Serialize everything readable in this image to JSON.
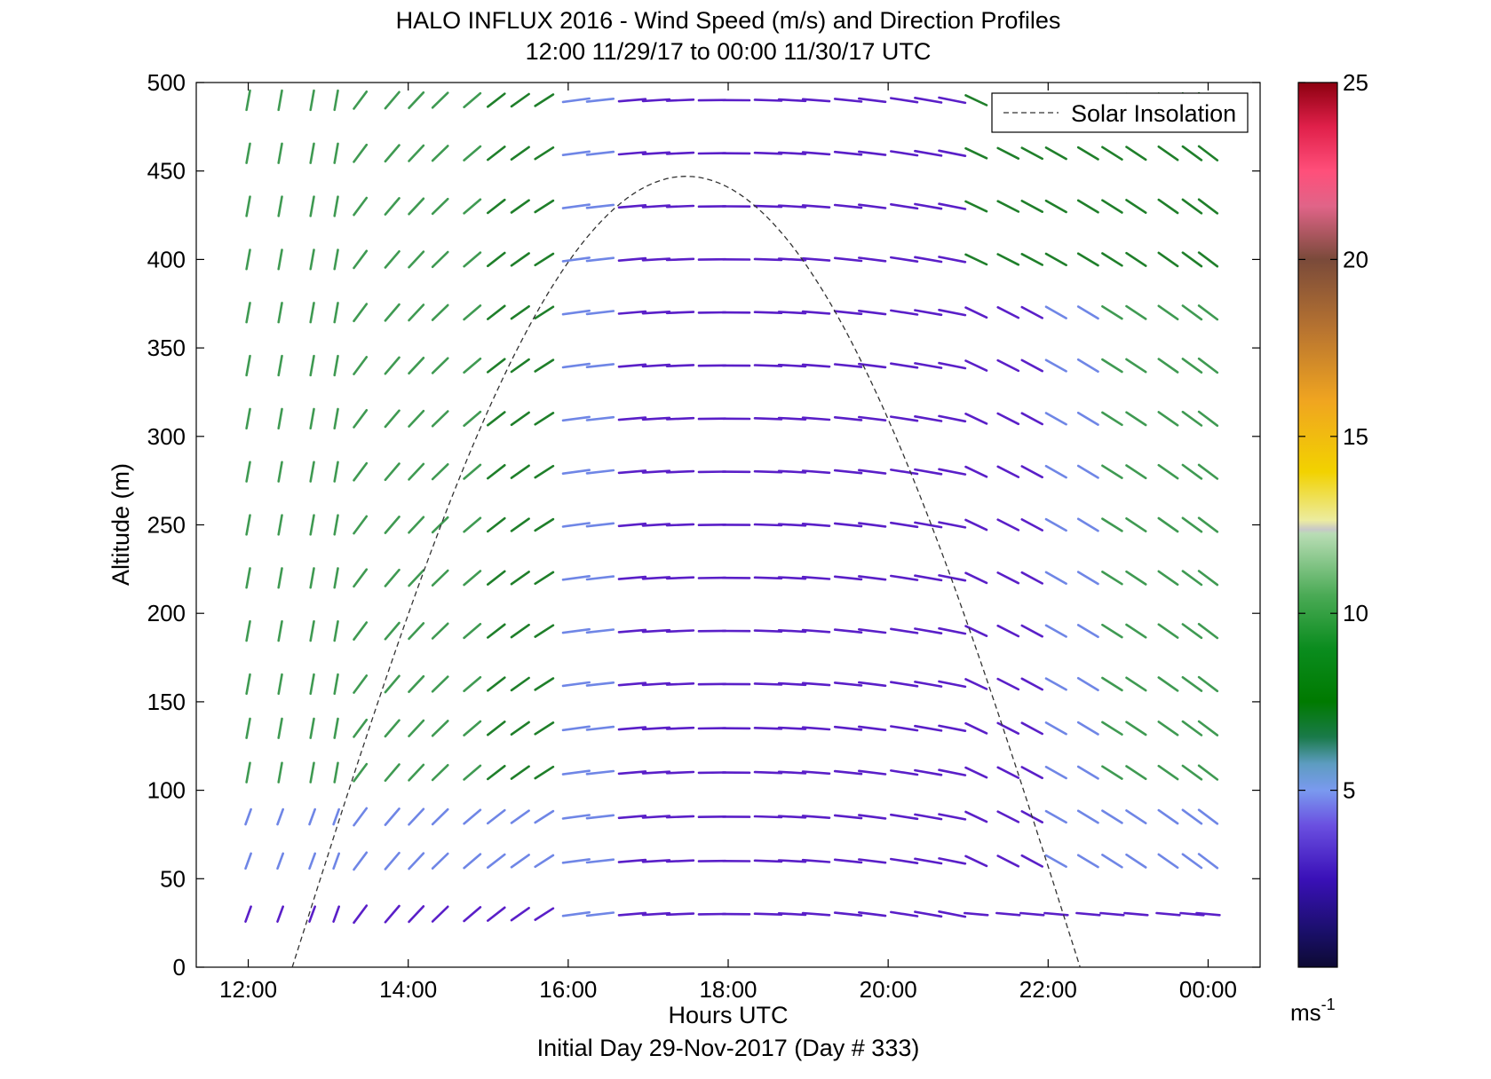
{
  "chart_data": {
    "type": "vector_field",
    "title": "HALO INFLUX 2016 - Wind Speed (m/s) and Direction Profiles",
    "subtitle": "12:00 11/29/17 to 00:00 11/30/17  UTC",
    "xlabel": "Hours UTC",
    "ylabel": "Altitude (m)",
    "footer": "Initial Day 29-Nov-2017 (Day # 333)",
    "x_ticks": [
      {
        "value": 12,
        "label": "12:00"
      },
      {
        "value": 14,
        "label": "14:00"
      },
      {
        "value": 16,
        "label": "16:00"
      },
      {
        "value": 18,
        "label": "18:00"
      },
      {
        "value": 20,
        "label": "20:00"
      },
      {
        "value": 22,
        "label": "22:00"
      },
      {
        "value": 24,
        "label": "00:00"
      }
    ],
    "y_ticks": [
      0,
      50,
      100,
      150,
      200,
      250,
      300,
      350,
      400,
      450,
      500
    ],
    "xlim": [
      11.35,
      24.65
    ],
    "ylim": [
      0,
      500
    ],
    "colorbar": {
      "min": 0,
      "max": 25,
      "ticks": [
        5,
        10,
        15,
        20,
        25
      ],
      "unit_base": "ms",
      "unit_exp": "-1"
    },
    "legend": {
      "label": "Solar Insolation",
      "position": "top-right"
    },
    "solar_insolation": {
      "start_hour": 12.55,
      "end_hour": 22.4,
      "peak_hour": 17.45,
      "peak_altitude": 447
    },
    "time_hours": [
      12.0,
      12.4,
      12.8,
      13.1,
      13.4,
      13.8,
      14.1,
      14.4,
      14.8,
      15.1,
      15.4,
      15.7,
      16.1,
      16.4,
      16.8,
      17.1,
      17.4,
      17.8,
      18.1,
      18.5,
      18.8,
      19.1,
      19.5,
      19.8,
      20.2,
      20.5,
      20.8,
      21.1,
      21.5,
      21.8,
      22.1,
      22.5,
      22.8,
      23.1,
      23.5,
      23.8,
      24.0
    ],
    "altitudes_m": [
      30,
      60,
      85,
      110,
      135,
      160,
      190,
      220,
      250,
      280,
      310,
      340,
      370,
      400,
      430,
      460,
      490
    ]
  },
  "colors": {
    "calm": "#5a1fc8",
    "light": "#6f86e6",
    "moderate": "#3f9a52",
    "strong": "#1f7f2a",
    "axis": "#000000"
  }
}
